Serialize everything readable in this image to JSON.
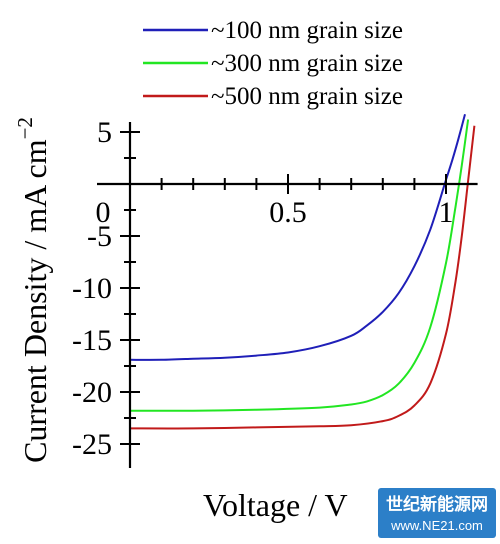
{
  "chart_data": {
    "type": "line",
    "title": "",
    "xlabel": "Voltage / V",
    "ylabel": "Current Density / mA cm",
    "ylabel_superscript": "−2",
    "xlim": [
      -0.07,
      1.1
    ],
    "ylim": [
      -26,
      6
    ],
    "x_ticks": [
      {
        "value": 0,
        "label": "0"
      },
      {
        "value": 0.5,
        "label": "0.5"
      },
      {
        "value": 1,
        "label": "1"
      }
    ],
    "y_ticks": [
      {
        "value": 5,
        "label": "5"
      },
      {
        "value": 0,
        "label": "0"
      },
      {
        "value": -5,
        "label": "-5"
      },
      {
        "value": -10,
        "label": "-10"
      },
      {
        "value": -15,
        "label": "-15"
      },
      {
        "value": -20,
        "label": "-20"
      },
      {
        "value": -25,
        "label": "-25"
      }
    ],
    "grid": false,
    "legend_position": "top-right",
    "series": [
      {
        "name": "~100 nm grain size",
        "color": "#1f1fb8",
        "x": [
          0,
          0.1,
          0.2,
          0.3,
          0.4,
          0.5,
          0.6,
          0.7,
          0.75,
          0.8,
          0.85,
          0.9,
          0.95,
          1.0,
          1.02,
          1.04,
          1.06
        ],
        "y": [
          -16.9,
          -16.9,
          -16.8,
          -16.7,
          -16.5,
          -16.2,
          -15.6,
          -14.6,
          -13.6,
          -12.3,
          -10.5,
          -7.9,
          -4.4,
          0.4,
          2.3,
          4.4,
          6.7
        ]
      },
      {
        "name": "~300 nm grain size",
        "color": "#22e622",
        "x": [
          0,
          0.2,
          0.4,
          0.6,
          0.7,
          0.75,
          0.8,
          0.85,
          0.9,
          0.95,
          1.0,
          1.03,
          1.05,
          1.07
        ],
        "y": [
          -21.8,
          -21.8,
          -21.7,
          -21.5,
          -21.2,
          -20.9,
          -20.3,
          -19.2,
          -17.2,
          -13.8,
          -7.6,
          -2.2,
          1.8,
          6.2
        ]
      },
      {
        "name": "~500 nm grain size",
        "color": "#c11a1a",
        "x": [
          0,
          0.2,
          0.4,
          0.6,
          0.7,
          0.8,
          0.85,
          0.9,
          0.95,
          1.0,
          1.03,
          1.05,
          1.07,
          1.09
        ],
        "y": [
          -23.5,
          -23.5,
          -23.4,
          -23.3,
          -23.2,
          -22.8,
          -22.3,
          -21.3,
          -19.2,
          -14.4,
          -9.4,
          -5.0,
          0.3,
          5.6
        ]
      }
    ]
  },
  "watermark": {
    "brand": "世纪新能源网",
    "url": "www.NE21.com",
    "color": "#2c7fc8"
  }
}
